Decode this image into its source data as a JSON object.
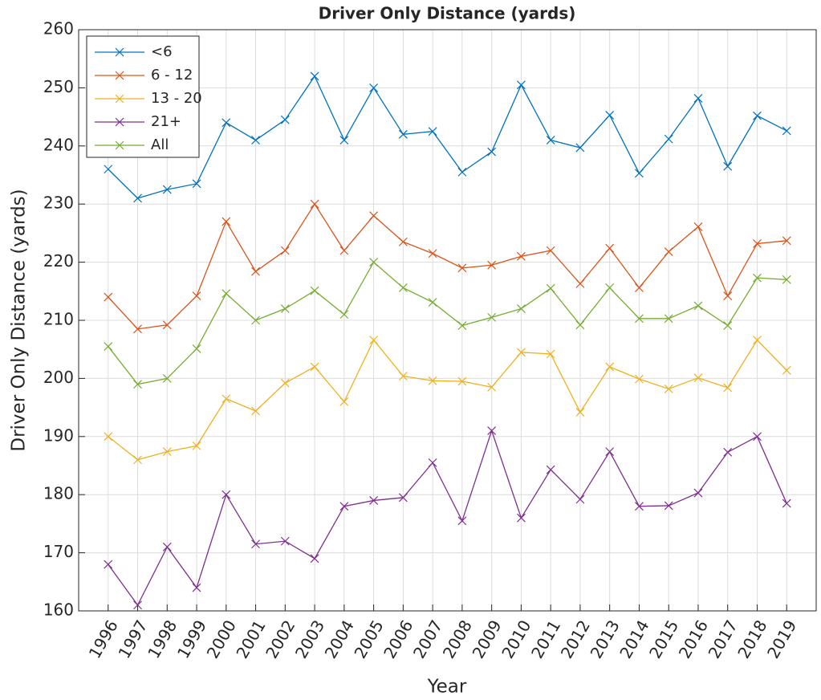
{
  "chart_data": {
    "type": "line",
    "title": "Driver Only Distance (yards)",
    "x_label": "Year",
    "y_label": "Driver Only Distance (yards)",
    "x": [
      1996,
      1997,
      1998,
      1999,
      2000,
      2001,
      2002,
      2003,
      2004,
      2005,
      2006,
      2007,
      2008,
      2009,
      2010,
      2011,
      2012,
      2013,
      2014,
      2015,
      2016,
      2017,
      2018,
      2019
    ],
    "xlim": [
      1995,
      2020
    ],
    "xticks": [
      1996,
      1997,
      1998,
      1999,
      2000,
      2001,
      2002,
      2003,
      2004,
      2005,
      2006,
      2007,
      2008,
      2009,
      2010,
      2011,
      2012,
      2013,
      2014,
      2015,
      2016,
      2017,
      2018,
      2019
    ],
    "ylim": [
      160,
      260
    ],
    "yticks": [
      160,
      170,
      180,
      190,
      200,
      210,
      220,
      230,
      240,
      250,
      260
    ],
    "grid": true,
    "legend": "upper-left",
    "series": [
      {
        "name": "<6",
        "color": "#0072BD",
        "values": [
          236,
          231,
          232.5,
          233.5,
          244,
          241,
          244.5,
          252,
          241,
          250,
          242,
          242.5,
          235.5,
          239,
          250.5,
          241,
          239.7,
          245.3,
          235.3,
          241.2,
          248.2,
          236.5,
          245.2,
          242.6
        ]
      },
      {
        "name": "6 - 12",
        "color": "#D95319",
        "values": [
          214,
          208.5,
          209.2,
          214.2,
          227,
          218.4,
          222,
          230,
          222,
          228,
          223.5,
          221.5,
          219,
          219.5,
          221,
          222,
          216.3,
          222.4,
          215.6,
          221.8,
          226.1,
          214.2,
          223.2,
          223.7
        ]
      },
      {
        "name": "13 - 20",
        "color": "#EDB120",
        "values": [
          190,
          186,
          187.4,
          188.4,
          196.5,
          194.4,
          199.2,
          202,
          196,
          206.6,
          200.4,
          199.6,
          199.5,
          198.5,
          204.5,
          204.2,
          194.2,
          202,
          199.9,
          198.2,
          200.1,
          198.4,
          206.6,
          201.4
        ]
      },
      {
        "name": "21+",
        "color": "#7E2F8E",
        "values": [
          168,
          161,
          171,
          164,
          180,
          171.5,
          172,
          169,
          178,
          179,
          179.5,
          185.5,
          175.5,
          191,
          176,
          184.3,
          179.2,
          187.4,
          178,
          178.1,
          180.3,
          187.3,
          190,
          178.5
        ]
      },
      {
        "name": "All",
        "color": "#77AC30",
        "values": [
          205.5,
          199,
          200,
          205.1,
          214.6,
          210,
          212,
          215.1,
          211,
          220,
          215.6,
          213.1,
          209.1,
          210.5,
          212,
          215.5,
          209.2,
          215.6,
          210.3,
          210.3,
          212.5,
          209.1,
          217.3,
          217
        ]
      }
    ]
  }
}
